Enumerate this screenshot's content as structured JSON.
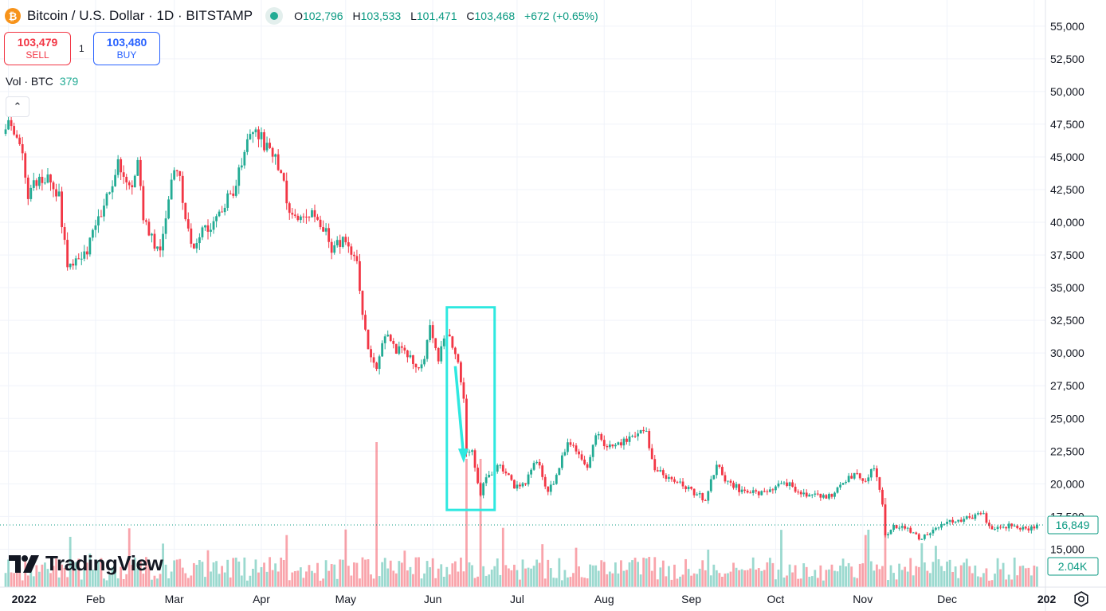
{
  "header": {
    "coin_icon": "bitcoin-icon",
    "coin_glyph": "₿",
    "title": "Bitcoin / U.S. Dollar · 1D · BITSTAMP",
    "status_color": "#22ab94",
    "ohlc": {
      "o_label": "O",
      "o_value": "102,796",
      "h_label": "H",
      "h_value": "103,533",
      "l_label": "L",
      "l_value": "101,471",
      "c_label": "C",
      "c_value": "103,468",
      "change": "+672 (+0.65%)"
    }
  },
  "trade": {
    "sell_price": "103,479",
    "sell_label": "SELL",
    "quantity": "1",
    "buy_price": "103,480",
    "buy_label": "BUY"
  },
  "volume_legend": {
    "label": "Vol · BTC",
    "value": "379"
  },
  "branding": {
    "logo_text": "TradingView"
  },
  "colors": {
    "up": "#22ab94",
    "down": "#f23645",
    "annotation": "#2ee8e0",
    "price_badge": "#089981"
  },
  "chart_data": {
    "type": "candlestick",
    "title": "Bitcoin / U.S. Dollar · 1D · BITSTAMP",
    "xlabel": "",
    "ylabel": "",
    "x_tick_labels": [
      "2022",
      "Feb",
      "Mar",
      "Apr",
      "May",
      "Jun",
      "Jul",
      "Aug",
      "Sep",
      "Oct",
      "Nov",
      "Dec",
      "202"
    ],
    "x_tick_dates": [
      "2022-01-01",
      "2022-02-01",
      "2022-03-01",
      "2022-04-01",
      "2022-05-01",
      "2022-06-01",
      "2022-07-01",
      "2022-08-01",
      "2022-09-01",
      "2022-10-01",
      "2022-11-01",
      "2022-12-01",
      "2023-01-01"
    ],
    "y_tick_values": [
      15000,
      17500,
      20000,
      22500,
      25000,
      27500,
      30000,
      32500,
      35000,
      37500,
      40000,
      42500,
      45000,
      47500,
      50000,
      52500,
      55000
    ],
    "y_tick_labels": [
      "15,000",
      "17,500",
      "20,000",
      "22,500",
      "25,000",
      "27,500",
      "30,000",
      "32,500",
      "35,000",
      "37,500",
      "40,000",
      "42,500",
      "45,000",
      "47,500",
      "50,000",
      "52,500",
      "55,000"
    ],
    "ylim": [
      12100,
      57000
    ],
    "xlim": [
      "2021-12-29",
      "2023-01-05"
    ],
    "grid": true,
    "series_points": [
      [
        "2021-12-31",
        47000
      ],
      [
        "2022-01-02",
        47700
      ],
      [
        "2022-01-05",
        46500
      ],
      [
        "2022-01-08",
        41800
      ],
      [
        "2022-01-12",
        43600
      ],
      [
        "2022-01-16",
        43100
      ],
      [
        "2022-01-19",
        42000
      ],
      [
        "2022-01-22",
        36300
      ],
      [
        "2022-01-24",
        36800
      ],
      [
        "2022-01-29",
        38000
      ],
      [
        "2022-02-04",
        41500
      ],
      [
        "2022-02-09",
        44500
      ],
      [
        "2022-02-10",
        43700
      ],
      [
        "2022-02-14",
        42600
      ],
      [
        "2022-02-16",
        44500
      ],
      [
        "2022-02-18",
        40500
      ],
      [
        "2022-02-22",
        38300
      ],
      [
        "2022-02-24",
        38300
      ],
      [
        "2022-02-28",
        43200
      ],
      [
        "2022-03-02",
        44400
      ],
      [
        "2022-03-07",
        38100
      ],
      [
        "2022-03-10",
        39300
      ],
      [
        "2022-03-14",
        39700
      ],
      [
        "2022-03-17",
        40900
      ],
      [
        "2022-03-22",
        42400
      ],
      [
        "2022-03-25",
        44300
      ],
      [
        "2022-03-29",
        47400
      ],
      [
        "2022-04-01",
        46300
      ],
      [
        "2022-04-05",
        45500
      ],
      [
        "2022-04-09",
        42700
      ],
      [
        "2022-04-12",
        40100
      ],
      [
        "2022-04-16",
        40400
      ],
      [
        "2022-04-18",
        40800
      ],
      [
        "2022-04-21",
        40500
      ],
      [
        "2022-04-26",
        38100
      ],
      [
        "2022-04-29",
        38600
      ],
      [
        "2022-05-01",
        38500
      ],
      [
        "2022-05-05",
        36600
      ],
      [
        "2022-05-09",
        30100
      ],
      [
        "2022-05-12",
        29000
      ],
      [
        "2022-05-15",
        31300
      ],
      [
        "2022-05-19",
        30300
      ],
      [
        "2022-05-22",
        30300
      ],
      [
        "2022-05-26",
        29200
      ],
      [
        "2022-05-28",
        29000
      ],
      [
        "2022-05-31",
        31800
      ],
      [
        "2022-06-03",
        29700
      ],
      [
        "2022-06-06",
        31400
      ],
      [
        "2022-06-09",
        30100
      ],
      [
        "2022-06-12",
        26600
      ],
      [
        "2022-06-13",
        22400
      ],
      [
        "2022-06-15",
        22500
      ],
      [
        "2022-06-18",
        19000
      ],
      [
        "2022-06-20",
        20600
      ],
      [
        "2022-06-25",
        21500
      ],
      [
        "2022-06-30",
        19800
      ],
      [
        "2022-07-04",
        20200
      ],
      [
        "2022-07-08",
        21800
      ],
      [
        "2022-07-12",
        19300
      ],
      [
        "2022-07-16",
        21200
      ],
      [
        "2022-07-19",
        23400
      ],
      [
        "2022-07-22",
        22600
      ],
      [
        "2022-07-26",
        21300
      ],
      [
        "2022-07-29",
        23800
      ],
      [
        "2022-08-02",
        22900
      ],
      [
        "2022-08-05",
        23200
      ],
      [
        "2022-08-09",
        23200
      ],
      [
        "2022-08-14",
        24300
      ],
      [
        "2022-08-16",
        23900
      ],
      [
        "2022-08-19",
        21100
      ],
      [
        "2022-08-26",
        20200
      ],
      [
        "2022-08-30",
        19800
      ],
      [
        "2022-09-06",
        18800
      ],
      [
        "2022-09-10",
        21600
      ],
      [
        "2022-09-13",
        20200
      ],
      [
        "2022-09-19",
        19500
      ],
      [
        "2022-09-22",
        19300
      ],
      [
        "2022-09-30",
        19400
      ],
      [
        "2022-10-04",
        20300
      ],
      [
        "2022-10-10",
        19100
      ],
      [
        "2022-10-15",
        19200
      ],
      [
        "2022-10-20",
        19000
      ],
      [
        "2022-10-25",
        20100
      ],
      [
        "2022-10-29",
        20800
      ],
      [
        "2022-11-02",
        20200
      ],
      [
        "2022-11-05",
        21300
      ],
      [
        "2022-11-08",
        18500
      ],
      [
        "2022-11-09",
        15900
      ],
      [
        "2022-11-12",
        16800
      ],
      [
        "2022-11-16",
        16600
      ],
      [
        "2022-11-21",
        15800
      ],
      [
        "2022-11-26",
        16500
      ],
      [
        "2022-12-01",
        17000
      ],
      [
        "2022-12-05",
        17100
      ],
      [
        "2022-12-13",
        17800
      ],
      [
        "2022-12-17",
        16700
      ],
      [
        "2022-12-21",
        16800
      ],
      [
        "2022-12-27",
        16700
      ],
      [
        "2022-12-31",
        16600
      ],
      [
        "2023-01-02",
        16849
      ]
    ],
    "last_price": "16,849",
    "volume_label": "2.04K",
    "volume_spikes": [
      [
        "2022-05-12",
        2.6
      ],
      [
        "2022-06-13",
        2.3
      ],
      [
        "2022-06-18",
        2.3
      ],
      [
        "2022-11-09",
        1.6
      ]
    ],
    "annotation": {
      "type": "rectangle-with-arrow",
      "start": "2022-06-06",
      "end": "2022-06-23",
      "price_top": 33500,
      "price_bottom": 18000
    },
    "volume_legend": {
      "label": "Vol · BTC",
      "value": "379"
    }
  }
}
